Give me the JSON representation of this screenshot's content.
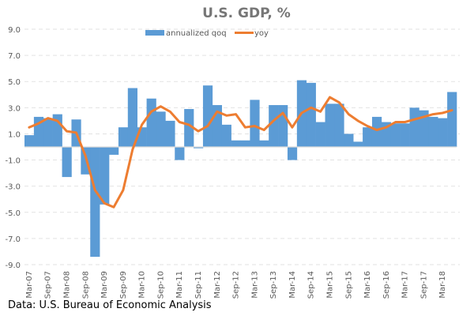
{
  "chart_data": {
    "type": "bar",
    "title": "U.S. GDP, %",
    "xlabel": "",
    "ylabel": "",
    "ylim": [
      -9.0,
      9.0
    ],
    "yticks": [
      "9.0",
      "7.0",
      "5.0",
      "3.0",
      "1.0",
      "-1.0",
      "-3.0",
      "-5.0",
      "-7.0",
      "-9.0"
    ],
    "ytick_values": [
      9,
      7,
      5,
      3,
      1,
      -1,
      -3,
      -5,
      -7,
      -9
    ],
    "grid": true,
    "legend_position": "top",
    "categories": [
      "Mar-07",
      "Jun-07",
      "Sep-07",
      "Dec-07",
      "Mar-08",
      "Jun-08",
      "Sep-08",
      "Dec-08",
      "Mar-09",
      "Jun-09",
      "Sep-09",
      "Dec-09",
      "Mar-10",
      "Jun-10",
      "Sep-10",
      "Dec-10",
      "Mar-11",
      "Jun-11",
      "Sep-11",
      "Dec-11",
      "Mar-12",
      "Jun-12",
      "Sep-12",
      "Dec-12",
      "Mar-13",
      "Jun-13",
      "Sep-13",
      "Dec-13",
      "Mar-14",
      "Jun-14",
      "Sep-14",
      "Dec-14",
      "Mar-15",
      "Jun-15",
      "Sep-15",
      "Dec-15",
      "Mar-16",
      "Jun-16",
      "Sep-16",
      "Dec-16",
      "Mar-17",
      "Jun-17",
      "Sep-17",
      "Dec-17",
      "Mar-18",
      "Jun-18"
    ],
    "xtick_labels": [
      "Mar-07",
      "Sep-07",
      "Mar-08",
      "Sep-08",
      "Mar-09",
      "Sep-09",
      "Mar-10",
      "Sep-10",
      "Mar-11",
      "Sep-11",
      "Mar-12",
      "Sep-12",
      "Mar-13",
      "Sep-13",
      "Mar-14",
      "Sep-14",
      "Mar-15",
      "Sep-15",
      "Mar-16",
      "Sep-16",
      "Mar-17",
      "Sep-17",
      "Mar-18"
    ],
    "series": [
      {
        "name": "annualized qoq",
        "type": "bar",
        "color": "#5B9BD5",
        "values": [
          0.9,
          2.3,
          2.2,
          2.5,
          -2.3,
          2.1,
          -2.1,
          -8.4,
          -4.4,
          -0.6,
          1.5,
          4.5,
          1.5,
          3.7,
          2.7,
          2.0,
          -1.0,
          2.9,
          -0.1,
          4.7,
          3.2,
          1.7,
          0.5,
          0.5,
          3.6,
          0.5,
          3.2,
          3.2,
          -1.0,
          5.1,
          4.9,
          1.9,
          3.3,
          3.3,
          1.0,
          0.4,
          1.5,
          2.3,
          1.9,
          1.8,
          1.8,
          3.0,
          2.8,
          2.3,
          2.2,
          4.2
        ]
      },
      {
        "name": "yoy",
        "type": "line",
        "color": "#ED7D31",
        "values": [
          1.5,
          1.8,
          2.2,
          2.0,
          1.2,
          1.1,
          -0.7,
          -3.3,
          -4.3,
          -4.6,
          -3.3,
          -0.2,
          1.7,
          2.7,
          3.1,
          2.7,
          1.9,
          1.7,
          1.2,
          1.6,
          2.7,
          2.4,
          2.5,
          1.5,
          1.6,
          1.3,
          2.0,
          2.6,
          1.5,
          2.6,
          3.0,
          2.7,
          3.8,
          3.4,
          2.5,
          2.0,
          1.6,
          1.3,
          1.5,
          1.9,
          1.9,
          2.1,
          2.3,
          2.5,
          2.6,
          2.8
        ]
      }
    ]
  },
  "source_note": "Data: U.S. Bureau of Economic Analysis"
}
